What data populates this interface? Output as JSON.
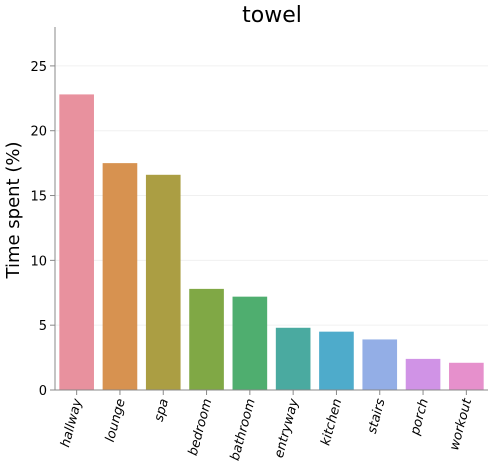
{
  "chart_data": {
    "type": "bar",
    "title": "towel",
    "xlabel": "",
    "ylabel": "Time spent (%)",
    "ylim": [
      0,
      28
    ],
    "yticks": [
      0,
      5,
      10,
      15,
      20,
      25
    ],
    "grid": "horizontal",
    "categories": [
      "hallway",
      "lounge",
      "spa",
      "bedroom",
      "bathroom",
      "entryway",
      "kitchen",
      "stairs",
      "porch",
      "workout"
    ],
    "values": [
      22.8,
      17.5,
      16.6,
      7.8,
      7.2,
      4.8,
      4.5,
      3.9,
      2.4,
      2.1
    ],
    "colors": [
      "#e8919e",
      "#d79250",
      "#ab9e43",
      "#80a845",
      "#4fae6f",
      "#4aaaa0",
      "#4eabcb",
      "#93aee6",
      "#d093e6",
      "#e690cc"
    ]
  }
}
